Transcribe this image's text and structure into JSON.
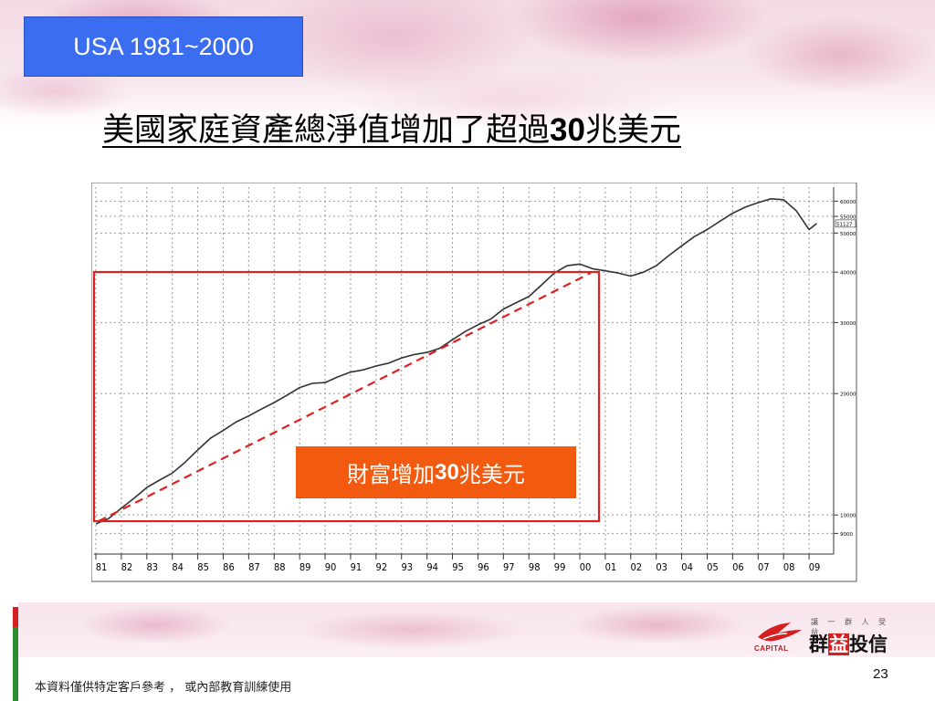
{
  "tag": {
    "label": "USA 1981~2000"
  },
  "title": {
    "prefix": "美國家庭資產總淨值增加了超過",
    "number": "30",
    "suffix": "兆美元"
  },
  "callout": {
    "prefix": "財富增加",
    "number": "30",
    "suffix": "兆美元"
  },
  "footer": {
    "note": "本資料僅供特定客戶參考 ， 或內部教育訓練使用",
    "page_number": "23"
  },
  "logo": {
    "english": "CAPITAL",
    "slogan": "讓 一 群 人 受 益",
    "chinese_pre": "群",
    "chinese_hl": "益",
    "chinese_post": "投信"
  },
  "colors": {
    "tag_bg": "#3a6df0",
    "callout_bg": "#f25a10",
    "box": "#e02020",
    "trend": "#e02020",
    "series": "#333333"
  },
  "chart_data": {
    "type": "line",
    "yscale": "log",
    "ylim": [
      8000,
      65000
    ],
    "xlim": [
      1981,
      2009.5
    ],
    "x_tick_labels": [
      "81",
      "82",
      "83",
      "84",
      "85",
      "86",
      "87",
      "88",
      "89",
      "90",
      "91",
      "92",
      "93",
      "94",
      "95",
      "96",
      "97",
      "98",
      "99",
      "00",
      "01",
      "02",
      "03",
      "04",
      "05",
      "06",
      "07",
      "08",
      "09"
    ],
    "y_tick_labels": [
      {
        "value": 60000,
        "label": "60000"
      },
      {
        "value": 55000,
        "label": "55000"
      },
      {
        "value": 50000,
        "label": "50000"
      },
      {
        "value": 40000,
        "label": "40000"
      },
      {
        "value": 30000,
        "label": "30000"
      },
      {
        "value": 20000,
        "label": "20000"
      },
      {
        "value": 10000,
        "label": "10000"
      },
      {
        "value": 9000,
        "label": "9000"
      }
    ],
    "last_value_label": "51127",
    "grid": true,
    "series": [
      {
        "x": [
          1981,
          1981.5,
          1982,
          1982.5,
          1983,
          1983.5,
          1984,
          1984.5,
          1985,
          1985.5,
          1986,
          1986.5,
          1987,
          1987.5,
          1988,
          1988.5,
          1989,
          1989.5,
          1990,
          1990.5,
          1991,
          1991.5,
          1992,
          1992.5,
          1993,
          1993.5,
          1994,
          1994.5,
          1995,
          1995.5,
          1996,
          1996.5,
          1997,
          1997.5,
          1998,
          1998.5,
          1999,
          1999.5,
          2000,
          2000.5,
          2001,
          2001.5,
          2002,
          2002.5,
          2003,
          2003.5,
          2004,
          2004.5,
          2005,
          2005.5,
          2006,
          2006.5,
          2007,
          2007.5,
          2008,
          2008.5,
          2009,
          2009.3
        ],
        "values": [
          9500,
          9800,
          10400,
          11000,
          11700,
          12200,
          12700,
          13500,
          14500,
          15500,
          16200,
          17000,
          17600,
          18300,
          19000,
          19800,
          20700,
          21200,
          21300,
          22000,
          22600,
          22900,
          23400,
          23800,
          24500,
          25000,
          25300,
          25900,
          27200,
          28500,
          29600,
          30600,
          32400,
          33600,
          34800,
          37200,
          39800,
          41500,
          41900,
          40800,
          40300,
          39800,
          39100,
          40000,
          41500,
          44000,
          46500,
          49000,
          51000,
          53500,
          56000,
          58000,
          59500,
          60800,
          60500,
          56800,
          51000,
          52800
        ]
      }
    ]
  }
}
